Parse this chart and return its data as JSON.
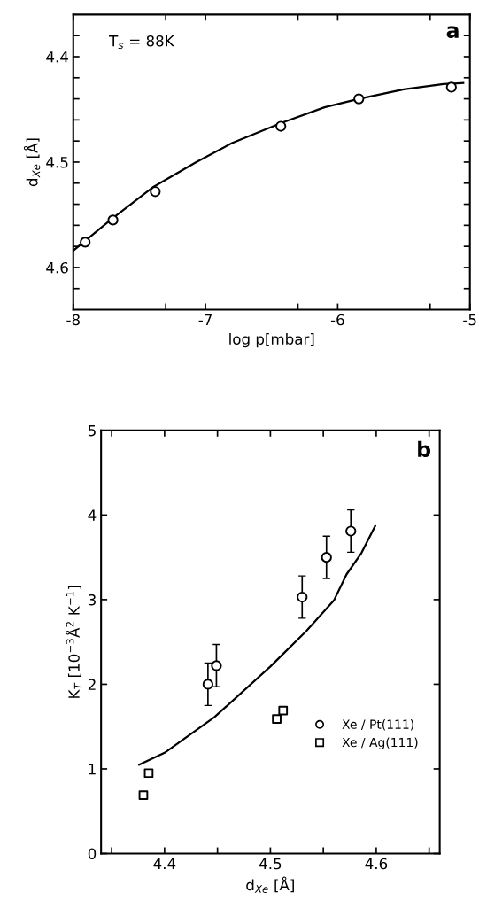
{
  "chart_data": [
    {
      "type": "scatter",
      "xlabel": "log p[mbar]",
      "ylabel": "d$_{Xe}$ [Å]",
      "annotations": [
        "T$_{s}$ = 88K",
        "a"
      ],
      "xlim": [
        -8,
        -5
      ],
      "xticks": [
        -8,
        {
          "value": -7.301,
          "label": null
        },
        -7,
        {
          "value": -6.301,
          "label": null
        },
        -6,
        {
          "value": -5.301,
          "label": null
        },
        -5
      ],
      "ylim": [
        4.64,
        4.36
      ],
      "yticks": [
        {
          "value": 4.38,
          "label": null
        },
        4.4,
        {
          "value": 4.42,
          "label": null
        },
        {
          "value": 4.44,
          "label": null
        },
        {
          "value": 4.46,
          "label": null
        },
        {
          "value": 4.48,
          "label": null
        },
        4.5,
        {
          "value": 4.52,
          "label": null
        },
        {
          "value": 4.54,
          "label": null
        },
        {
          "value": 4.56,
          "label": null
        },
        {
          "value": 4.58,
          "label": null
        },
        4.6,
        {
          "value": 4.62,
          "label": null
        }
      ],
      "grid": false,
      "legend": false,
      "series": [
        {
          "marker": "circle",
          "color": "#000000",
          "x": [
            -7.91,
            -7.7,
            -7.38,
            -6.43,
            -5.84,
            -5.14
          ],
          "values": [
            4.576,
            4.555,
            4.528,
            4.466,
            4.44,
            4.429
          ]
        },
        {
          "type": "line",
          "marker": "none",
          "line_style": "solid",
          "color": "#000000",
          "x": [
            -8,
            -7.7,
            -7.4,
            -7.07,
            -6.8,
            -6.43,
            -6.1,
            -5.84,
            -5.5,
            -5.2,
            -5.05
          ],
          "values": [
            4.584,
            4.553,
            4.524,
            4.5,
            4.482,
            4.463,
            4.448,
            4.44,
            4.431,
            4.426,
            4.425
          ]
        }
      ]
    },
    {
      "type": "scatter",
      "xlabel": "d$_{Xe}$ [Å]",
      "ylabel": "K$_{T}$ [10$^{−3}$Å$^{2}$ K$^{−1}$]",
      "annotations": [
        "b"
      ],
      "xlim": [
        4.34,
        4.66
      ],
      "xticks": [
        {
          "value": 4.35,
          "label": null
        },
        4.4,
        {
          "value": 4.45,
          "label": null
        },
        4.5,
        {
          "value": 4.55,
          "label": null
        },
        4.6,
        {
          "value": 4.65,
          "label": null
        }
      ],
      "ylim": [
        0,
        5
      ],
      "yticks": [
        0,
        1,
        2,
        3,
        4,
        5
      ],
      "grid": false,
      "legend": "bottom right",
      "series": [
        {
          "name": "Xe / Pt(111)",
          "marker": "circle",
          "color": "#000000",
          "x": [
            4.441,
            4.449,
            4.53,
            4.553,
            4.576
          ],
          "values": [
            2.0,
            2.22,
            3.03,
            3.5,
            3.81
          ],
          "errors": [
            0.25,
            0.25,
            0.25,
            0.25,
            0.25
          ]
        },
        {
          "name": "Xe / Ag(111)",
          "marker": "square",
          "color": "#000000",
          "x": [
            4.38,
            4.385,
            4.506,
            4.512
          ],
          "values": [
            0.69,
            0.95,
            1.59,
            1.69
          ]
        },
        {
          "type": "line",
          "marker": "none",
          "line_style": "solid",
          "color": "#000000",
          "x": [
            4.376,
            4.4,
            4.447,
            4.5,
            4.534,
            4.56,
            4.572,
            4.586,
            4.599
          ],
          "values": [
            1.05,
            1.19,
            1.61,
            2.21,
            2.63,
            2.99,
            3.3,
            3.55,
            3.87
          ]
        }
      ]
    }
  ]
}
